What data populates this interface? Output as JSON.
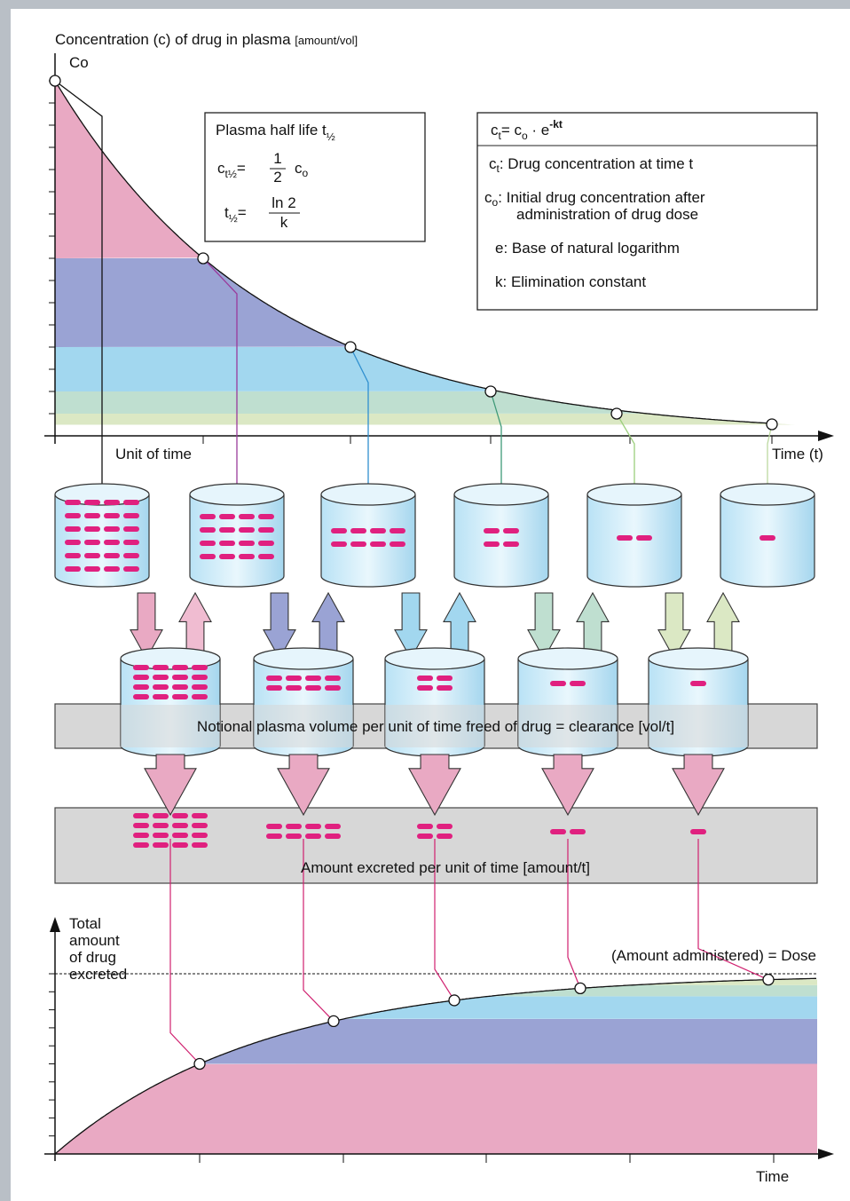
{
  "top_chart": {
    "y_label": "Concentration (c) of drug in plasma",
    "y_label_unit": "[amount/vol]",
    "c0_label": "Co",
    "x_unit_label": "Unit of time",
    "x_label": "Time (t)"
  },
  "half_life_box": {
    "title": "Plasma half life t",
    "title_sub": "½",
    "eq1": {
      "c": "c",
      "c_sub": "t½",
      "eq": "=",
      "num": "1",
      "den": "2",
      "rhs": "c",
      "rhs_sub": "o"
    },
    "eq2": {
      "t": "t",
      "t_sub": "½",
      "eq": "=",
      "num": "ln 2",
      "den": "k"
    }
  },
  "formula_box": {
    "formula": {
      "c": "c",
      "c_sub": "t",
      "mid": "= c",
      "mid_sub": "o",
      "e": " · e",
      "e_sup": "-kt"
    },
    "defs": [
      {
        "sym": "c",
        "sub": "t",
        "text": ": Drug concentration at time t"
      },
      {
        "sym": "c",
        "sub": "o",
        "text": ": Initial drug concentration after",
        "text2": "administration of drug dose"
      },
      {
        "text": "e: Base of natural logarithm"
      },
      {
        "text": "k: Elimination constant"
      }
    ]
  },
  "clearance_label": "Notional plasma volume per unit of time freed of drug = clearance [vol/t]",
  "excreted_label": "Amount excreted per unit of time [amount/t]",
  "bottom_chart": {
    "y_label": [
      "Total",
      "amount",
      "of drug",
      "excreted"
    ],
    "dose_label": "(Amount administered) = Dose",
    "x_label": "Time"
  }
}
